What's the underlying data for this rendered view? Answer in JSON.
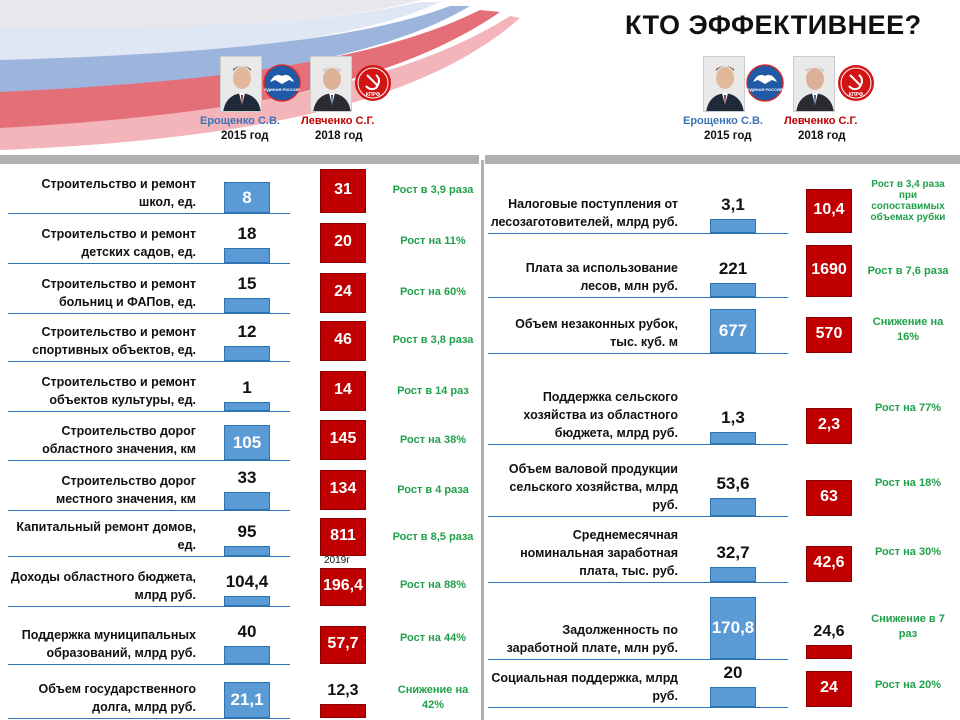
{
  "title": "КТО ЭФФЕКТИВНЕЕ?",
  "candidates": {
    "a": {
      "name": "Ерощенко С.В.",
      "year": "2015 год",
      "party": "ЕДИНАЯ РОССИЯ",
      "color": "#3b73b9"
    },
    "b": {
      "name": "Левченко С.Г.",
      "year": "2018 год",
      "party": "КПРФ",
      "color": "#c00000"
    }
  },
  "left_rows": [
    {
      "label": "Строительство и ремонт школ, ед.",
      "a": "8",
      "b": "31",
      "growth": "Рост в 3,9 раза"
    },
    {
      "label": "Строительство и ремонт детских садов, ед.",
      "a": "18",
      "b": "20",
      "growth": "Рост на 11%"
    },
    {
      "label": "Строительство и ремонт больниц и ФАПов, ед.",
      "a": "15",
      "b": "24",
      "growth": "Рост на 60%"
    },
    {
      "label": "Строительство и ремонт спортивных объектов, ед.",
      "a": "12",
      "b": "46",
      "growth": "Рост в 3,8 раза"
    },
    {
      "label": "Строительство и ремонт объектов культуры, ед.",
      "a": "1",
      "b": "14",
      "growth": "Рост в 14 раз"
    },
    {
      "label": "Строительство дорог областного значения, км",
      "a": "105",
      "b": "145",
      "growth": "Рост на 38%"
    },
    {
      "label": "Строительство дорог местного значения, км",
      "a": "33",
      "b": "134",
      "growth": "Рост в 4 раза"
    },
    {
      "label": "Капитальный ремонт домов, ед.",
      "a": "95",
      "b": "811",
      "growth": "Рост в 8,5 раза"
    },
    {
      "label": "Доходы областного бюджета, млрд руб.",
      "a": "104,4",
      "b": "196,4",
      "growth": "Рост на 88%",
      "note": "2019г"
    },
    {
      "label": "Поддержка муниципальных образований, млрд руб.",
      "a": "40",
      "b": "57,7",
      "growth": "Рост на 44%"
    },
    {
      "label": "Объем государственного долга, млрд руб.",
      "a": "21,1",
      "b": "12,3",
      "growth": "Снижение на 42%"
    }
  ],
  "right_rows": [
    {
      "label": "Налоговые поступления от лесозаготовителей, млрд руб.",
      "a": "3,1",
      "b": "10,4",
      "growth": "Рост в 3,4 раза при сопоставимых объемах рубки"
    },
    {
      "label": "Плата за использование лесов, млн руб.",
      "a": "221",
      "b": "1690",
      "growth": "Рост в 7,6 раза"
    },
    {
      "label": "Объем незаконных рубок, тыс. куб. м",
      "a": "677",
      "b": "570",
      "growth": "Снижение на 16%"
    },
    {
      "label": "Поддержка сельского хозяйства из областного бюджета, млрд руб.",
      "a": "1,3",
      "b": "2,3",
      "growth": "Рост на 77%"
    },
    {
      "label": "Объем валовой продукции сельского хозяйства, млрд руб.",
      "a": "53,6",
      "b": "63",
      "growth": "Рост на 18%"
    },
    {
      "label": "Среднемесячная номинальная заработная плата, тыс. руб.",
      "a": "32,7",
      "b": "42,6",
      "growth": "Рост на 30%"
    },
    {
      "label": "Задолженность по заработной плате, млн руб.",
      "a": "170,8",
      "b": "24,6",
      "growth": "Снижение в 7 раз"
    },
    {
      "label": "Социальная поддержка, млрд руб.",
      "a": "20",
      "b": "24",
      "growth": "Рост на 20%"
    }
  ]
}
